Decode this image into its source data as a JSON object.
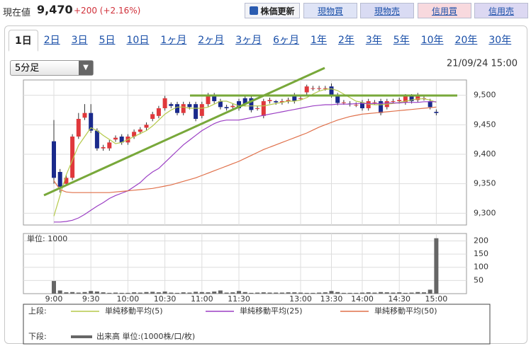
{
  "header": {
    "label": "現在値",
    "price": "9,470",
    "change": "+200 (+2.16%)",
    "buttons": [
      "株価更新",
      "現物買",
      "現物売",
      "信用買",
      "信用売"
    ]
  },
  "tabs": {
    "items": [
      "1日",
      "2日",
      "3日",
      "5日",
      "10日",
      "1ヶ月",
      "2ヶ月",
      "3ヶ月",
      "6ヶ月",
      "1年",
      "2年",
      "3年",
      "5年",
      "10年",
      "20年",
      "30年"
    ],
    "active_index": 0
  },
  "interval_select": "5分足",
  "legend": {
    "upper_label": "上段:",
    "lower_label": "下段:"
  },
  "chart_data": [
    {
      "type": "candlestick",
      "date": "21/09/24 15:00",
      "up_color": "#e0383c",
      "down_color": "#1a2a8c",
      "open": [
        9422,
        9370,
        9350,
        9360,
        9430,
        9462,
        9470,
        9440,
        9410,
        9410,
        9425,
        9430,
        9420,
        9430,
        9438,
        9445,
        9460,
        9465,
        9478,
        9485,
        9485,
        9470,
        9485,
        9485,
        9465,
        9485,
        9500,
        9490,
        9480,
        9480,
        9490,
        9495,
        9495,
        9478,
        9465,
        9490,
        9490,
        9488,
        9490,
        9500,
        9495,
        9505,
        9512,
        9512,
        9512,
        9515,
        9500,
        9488,
        9486,
        9484,
        9488,
        9478,
        9488,
        9490,
        9480,
        9490,
        9490,
        9488,
        9498,
        9492,
        9495,
        9490,
        9472
      ],
      "high": [
        9458,
        9375,
        9365,
        9434,
        9470,
        9485,
        9485,
        9444,
        9416,
        9424,
        9432,
        9434,
        9434,
        9442,
        9446,
        9454,
        9472,
        9482,
        9499,
        9488,
        9489,
        9489,
        9489,
        9489,
        9489,
        9504,
        9504,
        9494,
        9484,
        9486,
        9494,
        9499,
        9499,
        9482,
        9494,
        9496,
        9492,
        9494,
        9496,
        9504,
        9499,
        9518,
        9516,
        9516,
        9516,
        9520,
        9504,
        9492,
        9490,
        9488,
        9492,
        9494,
        9492,
        9494,
        9494,
        9494,
        9496,
        9502,
        9502,
        9504,
        9499,
        9494,
        9476
      ],
      "low": [
        9350,
        9335,
        9346,
        9356,
        9426,
        9458,
        9436,
        9406,
        9406,
        9406,
        9421,
        9416,
        9416,
        9426,
        9434,
        9441,
        9456,
        9461,
        9474,
        9478,
        9466,
        9466,
        9476,
        9456,
        9461,
        9481,
        9486,
        9476,
        9474,
        9476,
        9474,
        9481,
        9471,
        9474,
        9461,
        9486,
        9484,
        9484,
        9486,
        9486,
        9491,
        9501,
        9508,
        9508,
        9508,
        9496,
        9483,
        9484,
        9481,
        9480,
        9474,
        9474,
        9484,
        9466,
        9476,
        9486,
        9486,
        9484,
        9486,
        9488,
        9491,
        9476,
        9466
      ],
      "close": [
        9360,
        9345,
        9360,
        9430,
        9460,
        9470,
        9440,
        9410,
        9412,
        9420,
        9428,
        9420,
        9430,
        9438,
        9442,
        9450,
        9468,
        9478,
        9495,
        9482,
        9470,
        9485,
        9480,
        9460,
        9485,
        9500,
        9490,
        9480,
        9478,
        9482,
        9478,
        9485,
        9475,
        9478,
        9490,
        9492,
        9488,
        9490,
        9492,
        9490,
        9495,
        9515,
        9512,
        9512,
        9512,
        9500,
        9487,
        9488,
        9485,
        9484,
        9478,
        9490,
        9488,
        9470,
        9490,
        9490,
        9492,
        9498,
        9490,
        9500,
        9495,
        9480,
        9470
      ],
      "series": [
        {
          "name": "単純移動平均(5)",
          "color": "#b5c94a",
          "values": [
            9295,
            9330,
            9365,
            9390,
            9415,
            9430,
            9445,
            9440,
            9432,
            9425,
            9418,
            9420,
            9425,
            9430,
            9435,
            9440,
            9448,
            9458,
            9468,
            9475,
            9480,
            9480,
            9478,
            9478,
            9478,
            9480,
            9485,
            9490,
            9490,
            9486,
            9482,
            9482,
            9482,
            9482,
            9482,
            9484,
            9486,
            9488,
            9490,
            9490,
            9492,
            9496,
            9502,
            9507,
            9510,
            9511,
            9508,
            9502,
            9496,
            9490,
            9488,
            9485,
            9484,
            9484,
            9485,
            9486,
            9488,
            9490,
            9492,
            9494,
            9494,
            9492,
            9488
          ]
        },
        {
          "name": "単純移動平均(25)",
          "color": "#9b3fc4",
          "values": [
            9285,
            9285,
            9286,
            9288,
            9292,
            9298,
            9305,
            9312,
            9318,
            9325,
            9330,
            9334,
            9338,
            9345,
            9352,
            9362,
            9370,
            9376,
            9386,
            9396,
            9406,
            9416,
            9424,
            9432,
            9440,
            9446,
            9452,
            9456,
            9458,
            9458,
            9458,
            9460,
            9462,
            9464,
            9466,
            9468,
            9470,
            9472,
            9474,
            9476,
            9478,
            9480,
            9482,
            9483,
            9484,
            9484,
            9485,
            9485,
            9485,
            9486,
            9486,
            9486,
            9486,
            9486,
            9487,
            9487,
            9487,
            9488,
            9488,
            9488,
            9489,
            9489,
            9489
          ]
        },
        {
          "name": "単純移動平均(50)",
          "color": "#e0704a",
          "values": [
            9355,
            9340,
            9336,
            9335,
            9335,
            9335,
            9335,
            9335,
            9335,
            9335,
            9336,
            9337,
            9338,
            9339,
            9340,
            9341,
            9342,
            9344,
            9346,
            9348,
            9351,
            9354,
            9357,
            9360,
            9364,
            9368,
            9372,
            9376,
            9380,
            9384,
            9388,
            9393,
            9398,
            9403,
            9408,
            9412,
            9416,
            9420,
            9424,
            9428,
            9432,
            9436,
            9441,
            9446,
            9450,
            9454,
            9458,
            9461,
            9464,
            9466,
            9468,
            9469,
            9470,
            9471,
            9472,
            9473,
            9474,
            9475,
            9476,
            9477,
            9478,
            9479,
            9480
          ]
        }
      ],
      "ylim": [
        9280,
        9526
      ],
      "yticks": [
        {
          "value": 9300,
          "label": "9,300"
        },
        {
          "value": 9350,
          "label": "9,350"
        },
        {
          "value": 9400,
          "label": "9,400"
        },
        {
          "value": 9450,
          "label": "9,450"
        },
        {
          "value": 9500,
          "label": "9,500"
        }
      ],
      "grid": true
    },
    {
      "type": "bar",
      "title": "単位: 1000",
      "categories": [
        "9:00",
        null,
        null,
        null,
        null,
        null,
        "9:30",
        null,
        null,
        null,
        null,
        null,
        "10:00",
        null,
        null,
        null,
        null,
        null,
        "10:30",
        null,
        null,
        null,
        null,
        null,
        "11:00",
        null,
        null,
        null,
        null,
        null,
        "11:30",
        null,
        null,
        null,
        null,
        null,
        null,
        null,
        null,
        null,
        "13:00",
        null,
        null,
        null,
        null,
        "13:30",
        null,
        null,
        null,
        null,
        "14:00",
        null,
        null,
        null,
        null,
        null,
        "14:30",
        null,
        null,
        null,
        null,
        null,
        "15:00"
      ],
      "series": [
        {
          "name": "出来高 単位:(1000株/口/枚)",
          "color": "#666666",
          "values": [
            48,
            12,
            5,
            6,
            4,
            6,
            10,
            8,
            5,
            3,
            4,
            3,
            3,
            5,
            4,
            6,
            7,
            5,
            8,
            4,
            3,
            5,
            4,
            7,
            6,
            5,
            8,
            12,
            4,
            5,
            10,
            6,
            3,
            4,
            5,
            4,
            4,
            4,
            5,
            5,
            4,
            3,
            3,
            4,
            5,
            10,
            6,
            3,
            3,
            3,
            4,
            5,
            4,
            6,
            5,
            4,
            5,
            3,
            4,
            6,
            5,
            15,
            210
          ]
        }
      ],
      "ylim": [
        0,
        228
      ],
      "yticks": [
        50,
        100,
        150,
        200
      ],
      "grid": true
    }
  ]
}
